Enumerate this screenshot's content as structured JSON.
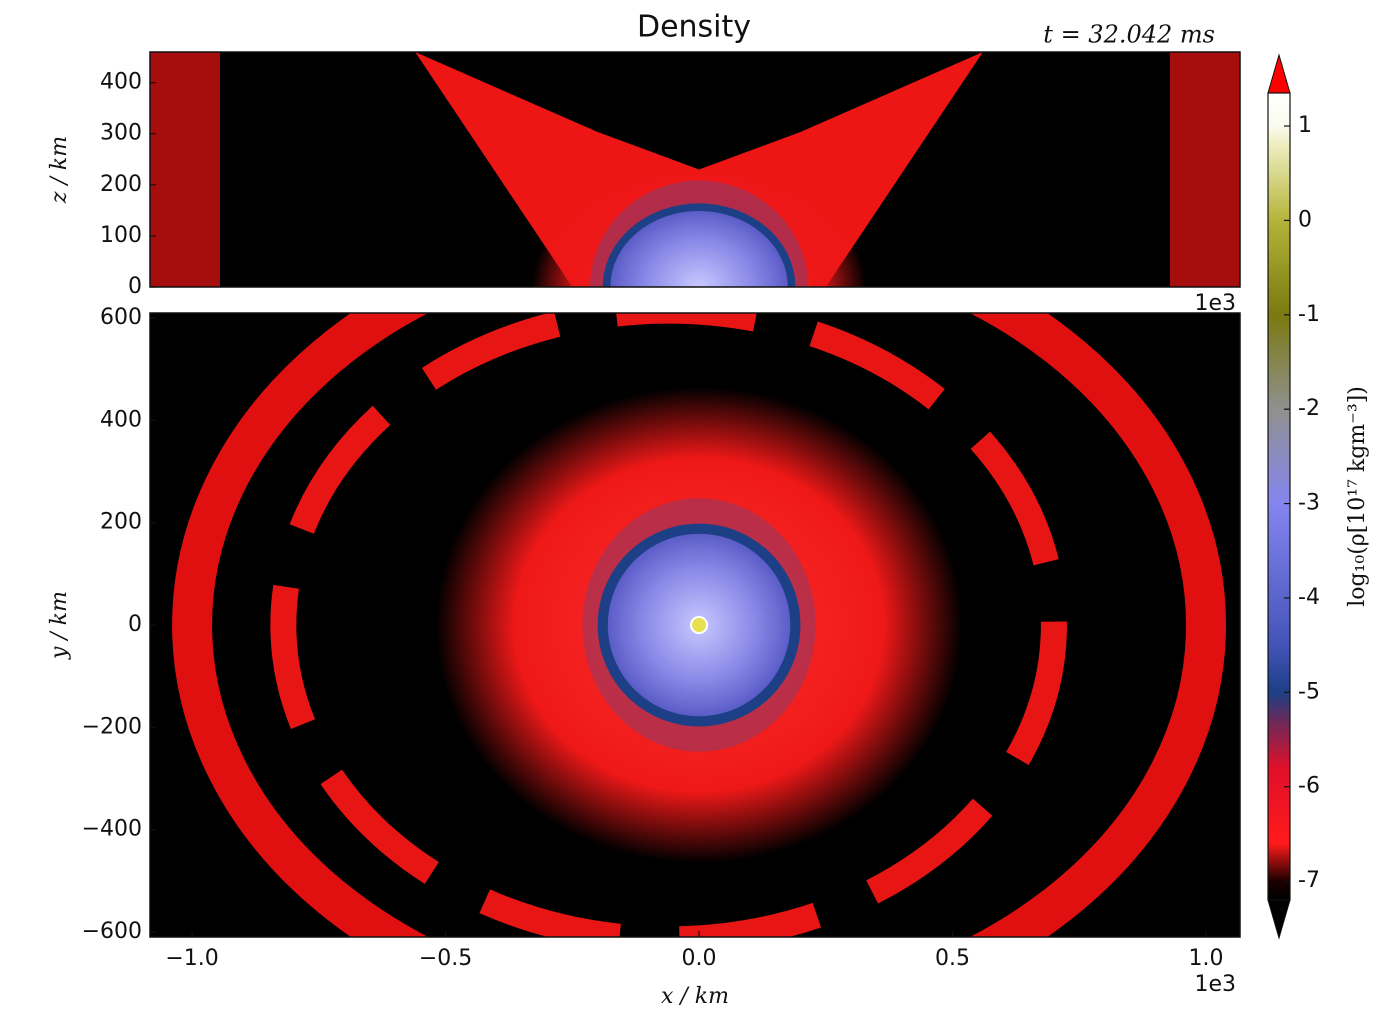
{
  "title": "Density",
  "time_label": "t = 32.042 ms",
  "chart_data": [
    {
      "type": "heatmap",
      "ylabel": "z / km",
      "xlim": [
        -1083,
        1067
      ],
      "ylim": [
        0,
        460
      ],
      "yticks": [
        0,
        100,
        200,
        300,
        400
      ],
      "x_offset_label": "1e3"
    },
    {
      "type": "heatmap",
      "xlabel": "x / km",
      "ylabel": "y / km",
      "xlim": [
        -1083,
        1067
      ],
      "ylim": [
        -610,
        610
      ],
      "xticks": [
        {
          "value": -1000,
          "label": "−1.0"
        },
        {
          "value": -500,
          "label": "−0.5"
        },
        {
          "value": 0,
          "label": "0.0"
        },
        {
          "value": 500,
          "label": "0.5"
        },
        {
          "value": 1000,
          "label": "1.0"
        }
      ],
      "yticks": [
        {
          "value": -600,
          "label": "−600"
        },
        {
          "value": -400,
          "label": "−400"
        },
        {
          "value": -200,
          "label": "−200"
        },
        0,
        200,
        400,
        600
      ],
      "x_offset_label": "1e3"
    }
  ],
  "colorbar": {
    "label": "log₁₀(ρ[10¹⁷ kgm⁻³])",
    "clim": [
      -7.2,
      1.35
    ],
    "ticks": [
      1,
      0,
      -1,
      -2,
      -3,
      -4,
      -5,
      -6,
      -7
    ]
  }
}
